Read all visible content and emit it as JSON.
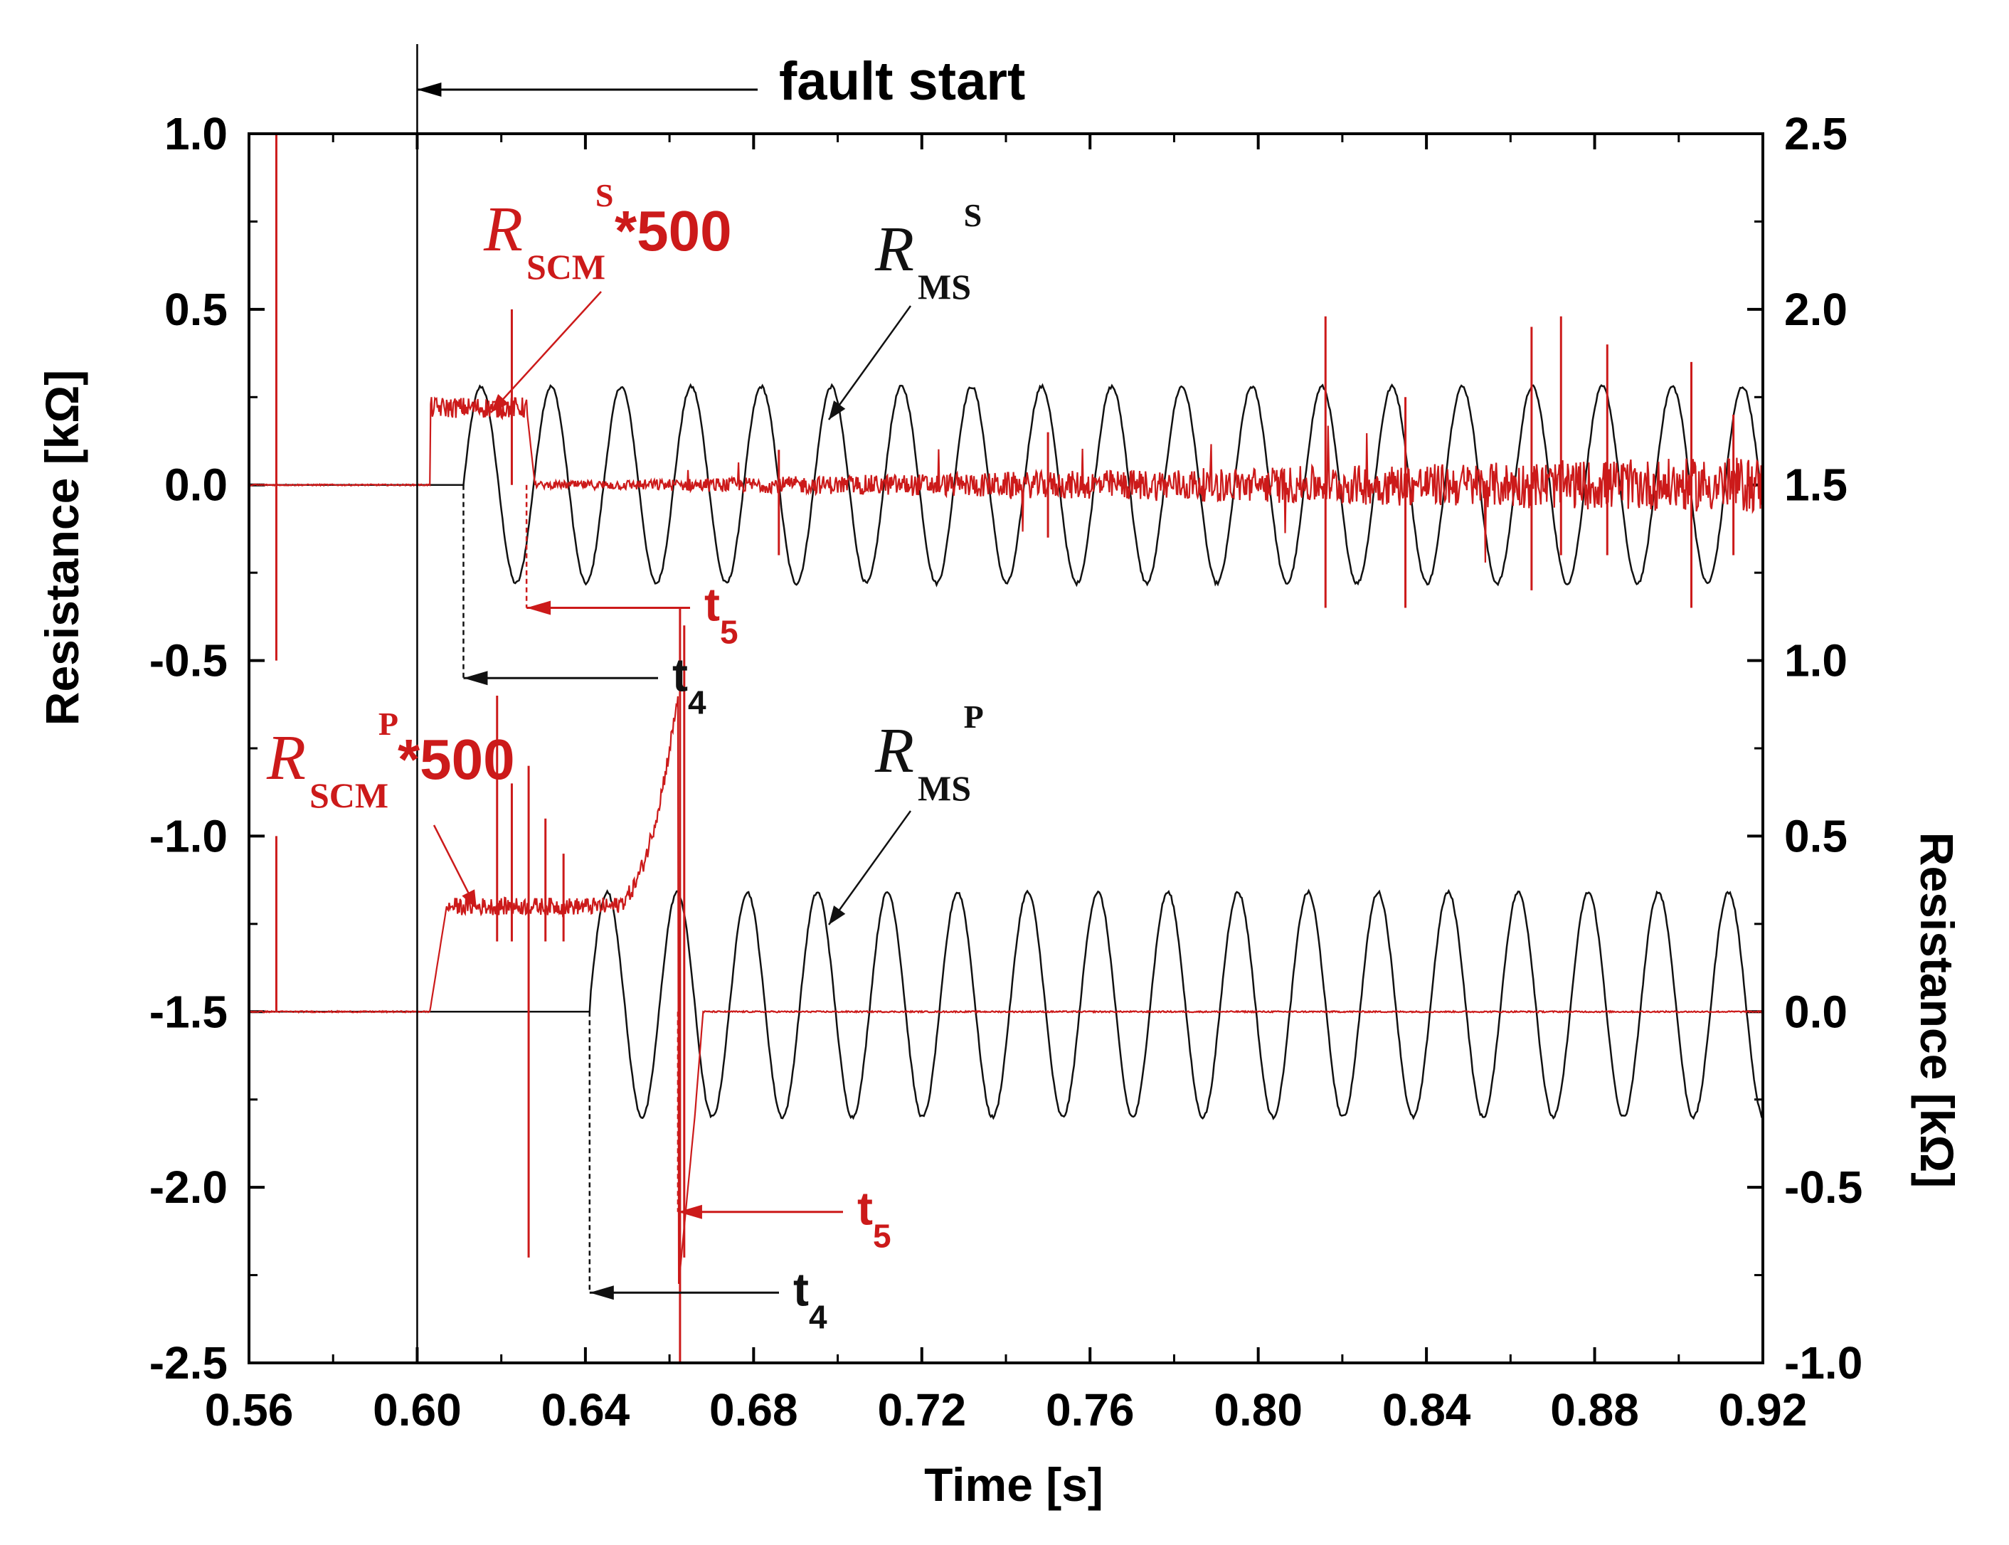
{
  "chart_data": {
    "type": "line",
    "title": "",
    "xlabel": "Time [s]",
    "ylabel_left": "Resistance [kΩ]",
    "ylabel_right": "Resistance [kΩ]",
    "xlim": [
      0.56,
      0.92
    ],
    "ylim_left": [
      -2.5,
      1.0
    ],
    "ylim_right": [
      -1.0,
      2.5
    ],
    "x_ticks": [
      "0.56",
      "0.60",
      "0.64",
      "0.68",
      "0.72",
      "0.76",
      "0.80",
      "0.84",
      "0.88",
      "0.92"
    ],
    "y_left_ticks": [
      "1.0",
      "0.5",
      "0.0",
      "-0.5",
      "-1.0",
      "-1.5",
      "-2.0",
      "-2.5"
    ],
    "y_right_ticks": [
      "2.5",
      "2.0",
      "1.5",
      "1.0",
      "0.5",
      "0.0",
      "-0.5",
      "-1.0"
    ],
    "grid": false,
    "colors": {
      "ms": "#111111",
      "scm": "#cc1a1a"
    },
    "fault_start": {
      "label": "fault start",
      "t": 0.6
    },
    "series": [
      {
        "key": "rms_s",
        "main": "R",
        "sub": "MS",
        "sup": "S",
        "suffix": "",
        "axis": "right",
        "baseline": 1.5,
        "onset": 0.611,
        "amplitude": 0.28,
        "frequency_hz": 60,
        "end": 0.92
      },
      {
        "key": "rscm_s",
        "main": "R",
        "sub": "SCM",
        "sup": "S",
        "suffix": "*500",
        "axis": "left",
        "baseline": 0.0,
        "plateau": 0.22,
        "plateau_start": 0.603,
        "plateau_end": 0.626,
        "end": 0.92
      },
      {
        "key": "rms_p",
        "main": "R",
        "sub": "MS",
        "sup": "P",
        "suffix": "",
        "axis": "right",
        "baseline": 0.0,
        "onset": 0.641,
        "amplitude": 0.32,
        "center": 0.02,
        "frequency_hz": 60,
        "end": 0.92
      },
      {
        "key": "rscm_p",
        "main": "R",
        "sub": "SCM",
        "sup": "P",
        "suffix": "*500",
        "axis": "left",
        "baseline": -1.5,
        "plateau": -1.2,
        "plateau_start": 0.603,
        "rise_end": 0.662,
        "peak": -0.6,
        "end": 0.92
      }
    ],
    "markers": [
      {
        "label": "t",
        "sub": "4",
        "color": "ms",
        "panel": "S",
        "t": 0.611
      },
      {
        "label": "t",
        "sub": "5",
        "color": "scm",
        "panel": "S",
        "t": 0.626
      },
      {
        "label": "t",
        "sub": "4",
        "color": "ms",
        "panel": "P",
        "t": 0.641
      },
      {
        "label": "t",
        "sub": "5",
        "color": "scm",
        "panel": "P",
        "t": 0.662
      }
    ]
  }
}
